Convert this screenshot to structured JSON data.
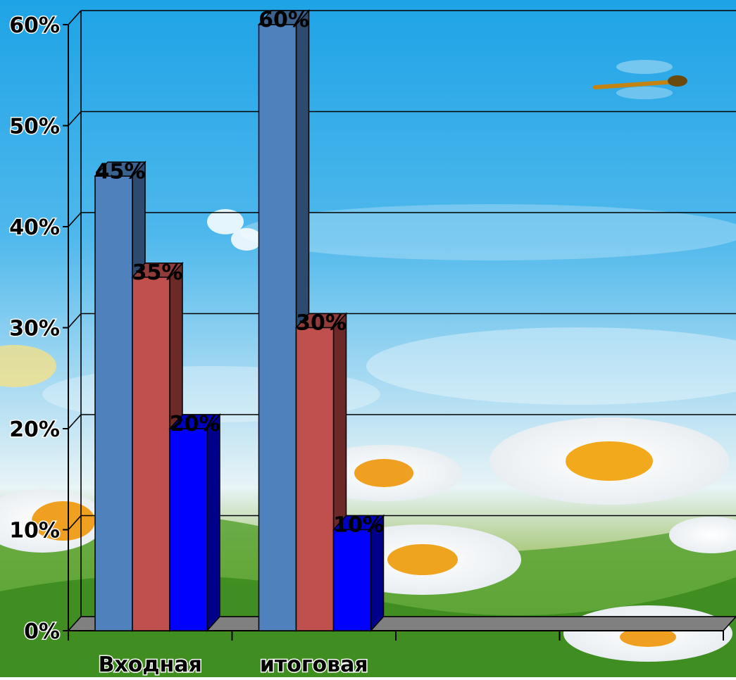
{
  "chart_data": {
    "type": "bar",
    "three_d": true,
    "categories": [
      "Входная",
      "итоговая",
      "",
      ""
    ],
    "series": [
      {
        "values": [
          45,
          60,
          null,
          null
        ],
        "color": "#4f81bd",
        "side_color": "#2e4a6e"
      },
      {
        "values": [
          35,
          30,
          null,
          null
        ],
        "color": "#c0504d",
        "side_color": "#6b2a28"
      },
      {
        "values": [
          20,
          10,
          null,
          null
        ],
        "color": "#0000ff",
        "side_color": "#00008b"
      }
    ],
    "data_labels": [
      [
        "45%",
        "35%",
        "20%"
      ],
      [
        "60%",
        "30%",
        "10%"
      ]
    ],
    "y_ticks": [
      "0%",
      "10%",
      "20%",
      "30%",
      "40%",
      "50%",
      "60%"
    ],
    "ylim": [
      0,
      60
    ],
    "grid": true,
    "legend": "none",
    "title": "",
    "xlabel": "",
    "ylabel": "",
    "background": "sky with daisies and a dragonfly"
  }
}
